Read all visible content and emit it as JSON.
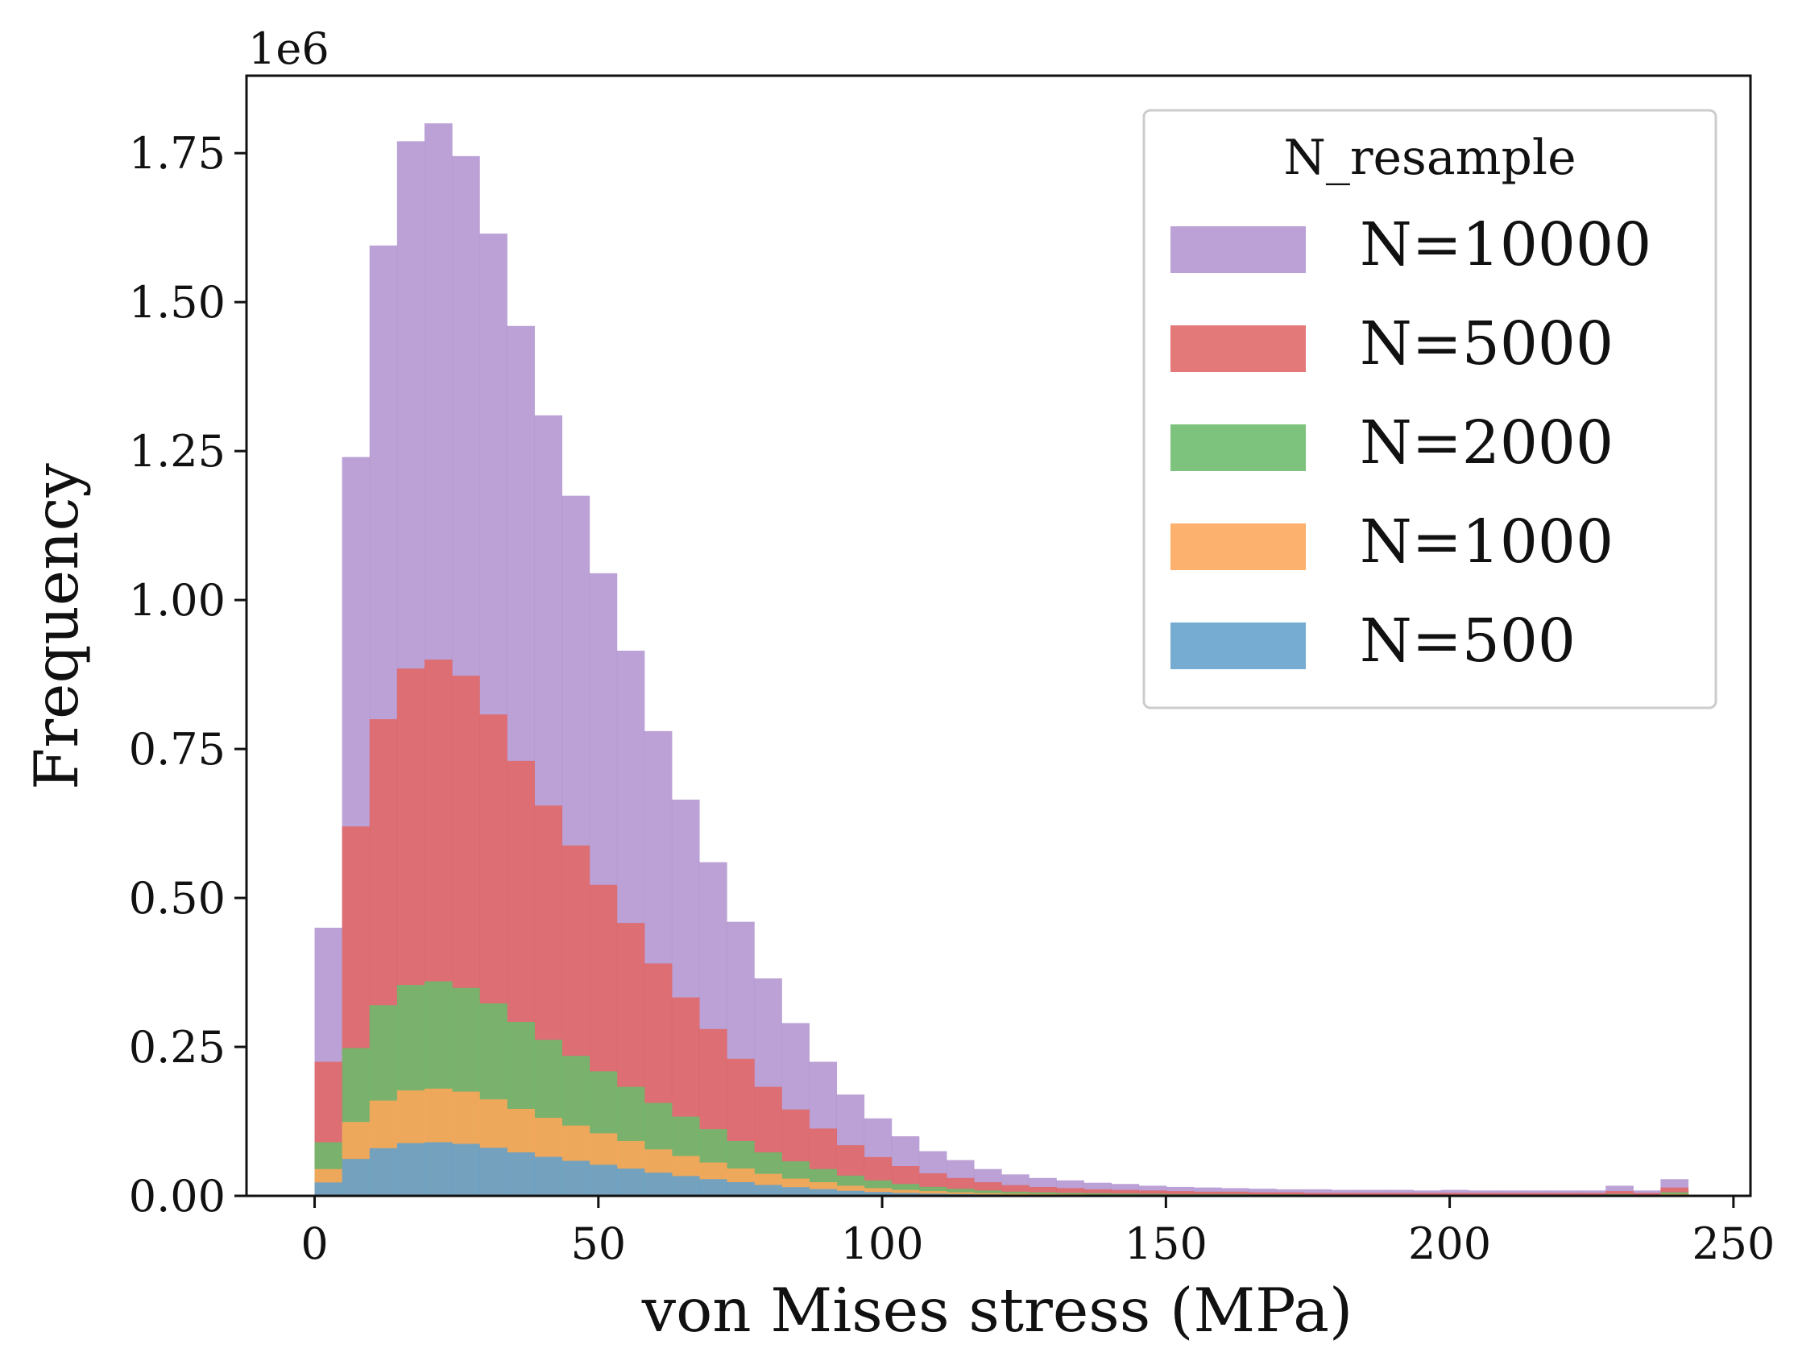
{
  "chart_data": {
    "type": "histogram",
    "title": "",
    "xlabel": "von Mises stress (MPa)",
    "ylabel": "Frequency",
    "y_scale_label": "1e6",
    "y_multiplier": 1000000,
    "xlim": [
      -12,
      253
    ],
    "ylim": [
      0,
      1.88
    ],
    "x_ticks": [
      0,
      50,
      100,
      150,
      200,
      250
    ],
    "x_tick_labels": [
      "0",
      "50",
      "100",
      "150",
      "200",
      "250"
    ],
    "y_ticks": [
      0,
      0.25,
      0.5,
      0.75,
      1.0,
      1.25,
      1.5,
      1.75
    ],
    "y_tick_labels": [
      "0.00",
      "0.25",
      "0.50",
      "0.75",
      "1.00",
      "1.25",
      "1.50",
      "1.75"
    ],
    "bin_start": 0,
    "bin_width": 4.84,
    "grid": false,
    "legend": {
      "title": "N_resample",
      "placement": "top-right"
    },
    "series": [
      {
        "name": "N=10000",
        "color": "#b294cf",
        "values": [
          0.45,
          1.24,
          1.595,
          1.77,
          1.8,
          1.745,
          1.615,
          1.46,
          1.31,
          1.175,
          1.045,
          0.915,
          0.78,
          0.665,
          0.56,
          0.46,
          0.365,
          0.29,
          0.225,
          0.17,
          0.13,
          0.1,
          0.075,
          0.06,
          0.045,
          0.036,
          0.03,
          0.026,
          0.022,
          0.02,
          0.017,
          0.015,
          0.014,
          0.013,
          0.012,
          0.011,
          0.011,
          0.01,
          0.01,
          0.01,
          0.009,
          0.01,
          0.009,
          0.009,
          0.009,
          0.009,
          0.009,
          0.017,
          0.009,
          0.028
        ]
      },
      {
        "name": "N=5000",
        "color": "#e06666",
        "values": [
          0.225,
          0.62,
          0.8,
          0.885,
          0.9,
          0.873,
          0.808,
          0.73,
          0.655,
          0.588,
          0.522,
          0.458,
          0.39,
          0.333,
          0.28,
          0.23,
          0.183,
          0.145,
          0.113,
          0.085,
          0.065,
          0.05,
          0.038,
          0.03,
          0.023,
          0.018,
          0.015,
          0.013,
          0.011,
          0.01,
          0.009,
          0.008,
          0.007,
          0.007,
          0.006,
          0.006,
          0.005,
          0.005,
          0.005,
          0.005,
          0.005,
          0.005,
          0.005,
          0.005,
          0.005,
          0.005,
          0.005,
          0.008,
          0.005,
          0.014
        ]
      },
      {
        "name": "N=2000",
        "color": "#6cbb6b",
        "values": [
          0.09,
          0.248,
          0.32,
          0.354,
          0.36,
          0.349,
          0.323,
          0.292,
          0.262,
          0.235,
          0.209,
          0.183,
          0.156,
          0.133,
          0.112,
          0.092,
          0.073,
          0.058,
          0.045,
          0.034,
          0.026,
          0.02,
          0.015,
          0.012,
          0.009,
          0.007,
          0.006,
          0.005,
          0.0045,
          0.004,
          0.0035,
          0.003,
          0.003,
          0.003,
          0.0025,
          0.0025,
          0.002,
          0.002,
          0.002,
          0.002,
          0.002,
          0.002,
          0.002,
          0.002,
          0.002,
          0.002,
          0.002,
          0.003,
          0.002,
          0.006
        ]
      },
      {
        "name": "N=1000",
        "color": "#fda65a",
        "values": [
          0.045,
          0.124,
          0.16,
          0.177,
          0.18,
          0.175,
          0.162,
          0.146,
          0.131,
          0.118,
          0.105,
          0.092,
          0.078,
          0.067,
          0.056,
          0.046,
          0.037,
          0.029,
          0.023,
          0.017,
          0.013,
          0.01,
          0.008,
          0.006,
          0.0045,
          0.0035,
          0.003,
          0.0026,
          0.0022,
          0.002,
          0.0017,
          0.0015,
          0.0014,
          0.0013,
          0.0012,
          0.0011,
          0.001,
          0.001,
          0.001,
          0.001,
          0.001,
          0.001,
          0.001,
          0.001,
          0.001,
          0.001,
          0.001,
          0.0017,
          0.001,
          0.003
        ]
      },
      {
        "name": "N=500",
        "color": "#63a0cc",
        "values": [
          0.0225,
          0.062,
          0.08,
          0.0885,
          0.09,
          0.0873,
          0.0808,
          0.073,
          0.0655,
          0.0588,
          0.0522,
          0.0458,
          0.039,
          0.0333,
          0.028,
          0.023,
          0.0183,
          0.0145,
          0.0113,
          0.0085,
          0.0065,
          0.005,
          0.0038,
          0.003,
          0.0023,
          0.0018,
          0.0015,
          0.0013,
          0.0011,
          0.001,
          0.0009,
          0.0008,
          0.0007,
          0.0007,
          0.0006,
          0.0006,
          0.0005,
          0.0005,
          0.0005,
          0.0005,
          0.0005,
          0.0005,
          0.0005,
          0.0005,
          0.0005,
          0.0005,
          0.0005,
          0.0008,
          0.0005,
          0.0014
        ]
      }
    ]
  }
}
